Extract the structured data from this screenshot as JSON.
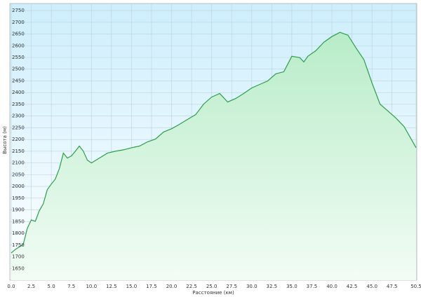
{
  "chart_data": {
    "type": "area",
    "x_label": "Расстояние (км)",
    "y_label": "Высота (м)",
    "x": [
      0,
      0.5,
      1.5,
      2,
      2.5,
      3,
      3.5,
      4,
      4.5,
      5,
      5.5,
      6,
      6.5,
      7,
      7.5,
      8,
      8.5,
      9,
      9.5,
      10,
      11,
      12,
      13,
      14,
      15,
      16,
      17,
      18,
      19,
      20,
      21,
      22,
      23,
      24,
      25,
      26,
      27,
      28,
      29,
      30,
      31,
      32,
      33,
      34,
      35,
      36,
      36.5,
      37,
      38,
      39,
      40,
      41,
      42,
      43,
      44,
      45,
      46,
      47,
      48,
      49,
      50,
      50.5
    ],
    "series": [
      {
        "color": "#2e9e4a",
        "fill": "#c8f0d6",
        "values": [
          1716,
          1731,
          1752,
          1821,
          1857,
          1851,
          1896,
          1926,
          1986,
          2010,
          2031,
          2076,
          2142,
          2121,
          2130,
          2150,
          2172,
          2150,
          2112,
          2100,
          2121,
          2142,
          2150,
          2156,
          2165,
          2172,
          2190,
          2202,
          2232,
          2246,
          2265,
          2286,
          2306,
          2351,
          2381,
          2396,
          2360,
          2375,
          2396,
          2420,
          2435,
          2450,
          2480,
          2489,
          2555,
          2549,
          2531,
          2555,
          2579,
          2615,
          2639,
          2657,
          2645,
          2591,
          2540,
          2441,
          2351,
          2321,
          2291,
          2255,
          2195,
          2165
        ]
      }
    ],
    "xlim": [
      0,
      50.5
    ],
    "ylim": [
      1600,
      2780
    ],
    "xticks": [
      {
        "value": 0,
        "label": "0.0"
      },
      2.5,
      {
        "value": 5,
        "label": "5.0"
      },
      7.5,
      {
        "value": 10,
        "label": "10.0"
      },
      12.5,
      {
        "value": 15,
        "label": "15.0"
      },
      17.5,
      {
        "value": 20,
        "label": "20.0"
      },
      22.5,
      {
        "value": 25,
        "label": "25.0"
      },
      27.5,
      {
        "value": 30,
        "label": "30.0"
      },
      32.5,
      {
        "value": 35,
        "label": "35.0"
      },
      37.5,
      {
        "value": 40,
        "label": "40.0"
      },
      42.5,
      {
        "value": 45,
        "label": "45.0"
      },
      47.5,
      50.5
    ],
    "yticks": [
      1650,
      1700,
      1750,
      1800,
      1850,
      1900,
      1950,
      2000,
      2050,
      2100,
      2150,
      2200,
      2250,
      2300,
      2350,
      2400,
      2450,
      2500,
      2550,
      2600,
      2650,
      2700,
      2750
    ],
    "grid": true
  }
}
